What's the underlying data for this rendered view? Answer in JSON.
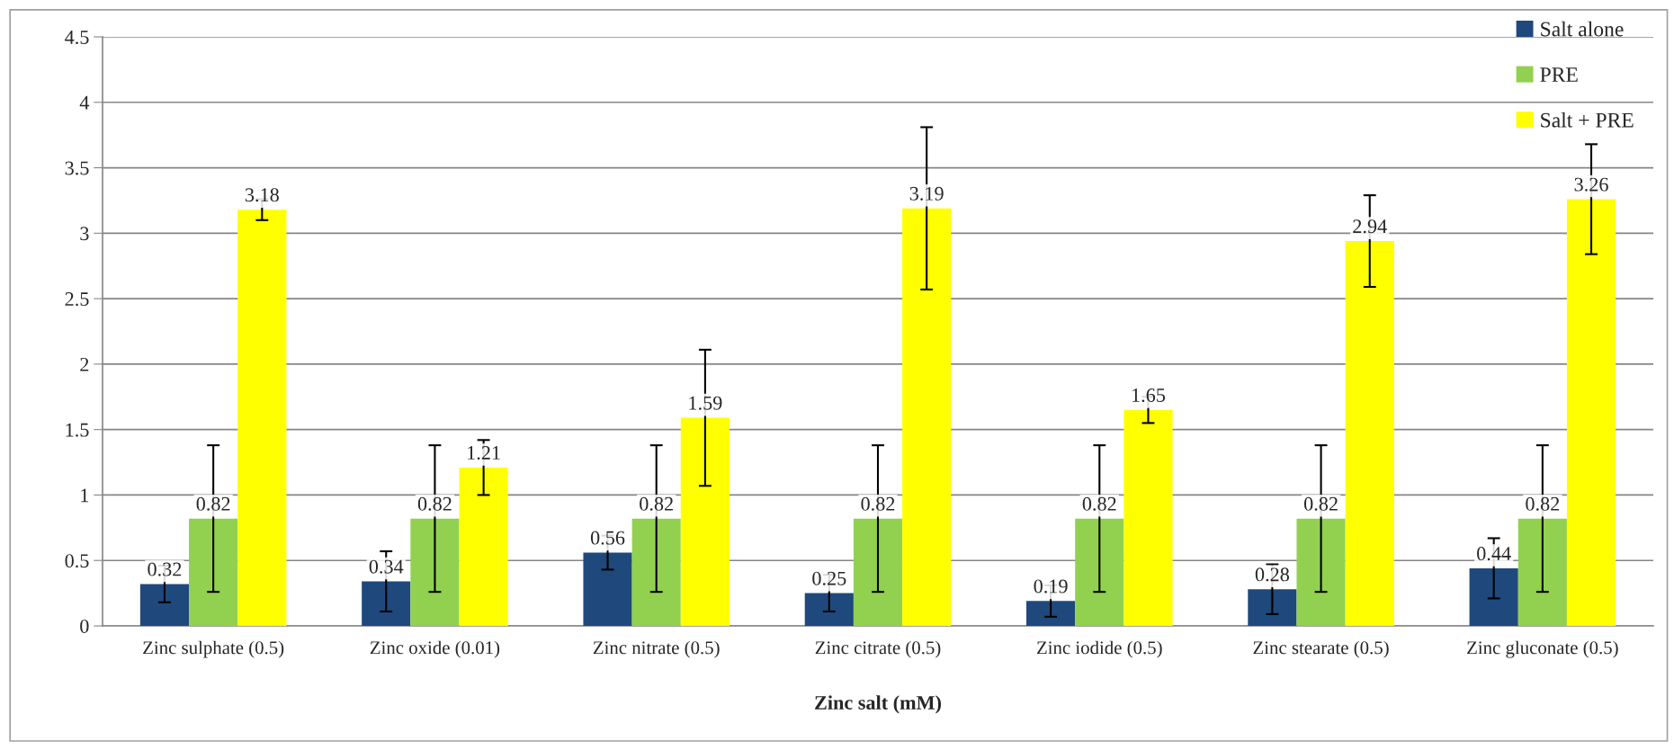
{
  "chart_data": {
    "type": "bar",
    "xlabel": "Zinc salt (mM)",
    "categories": [
      "Zinc sulphate (0.5)",
      "Zinc oxide (0.01)",
      "Zinc nitrate (0.5)",
      "Zinc citrate (0.5)",
      "Zinc iodide (0.5)",
      "Zinc stearate (0.5)",
      "Zinc gluconate (0.5)"
    ],
    "series": [
      {
        "name": "Salt alone",
        "color": "#1f497d",
        "values": [
          0.32,
          0.34,
          0.56,
          0.25,
          0.19,
          0.28,
          0.44
        ],
        "errors": [
          0.14,
          0.23,
          0.13,
          0.14,
          0.12,
          0.19,
          0.23
        ]
      },
      {
        "name": "PRE",
        "color": "#92d050",
        "values": [
          0.82,
          0.82,
          0.82,
          0.82,
          0.82,
          0.82,
          0.82
        ],
        "errors": [
          0.56,
          0.56,
          0.56,
          0.56,
          0.56,
          0.56,
          0.56
        ]
      },
      {
        "name": "Salt + PRE",
        "color": "#ffff00",
        "values": [
          3.18,
          1.21,
          1.59,
          3.19,
          1.65,
          2.94,
          3.26
        ],
        "errors": [
          0.08,
          0.21,
          0.52,
          0.62,
          0.1,
          0.35,
          0.42
        ]
      }
    ],
    "ylim": [
      0,
      4.5
    ],
    "yticks": [
      0,
      0.5,
      1,
      1.5,
      2,
      2.5,
      3,
      3.5,
      4,
      4.5
    ],
    "data_labels": true,
    "grid": "y",
    "legend": "top right"
  }
}
